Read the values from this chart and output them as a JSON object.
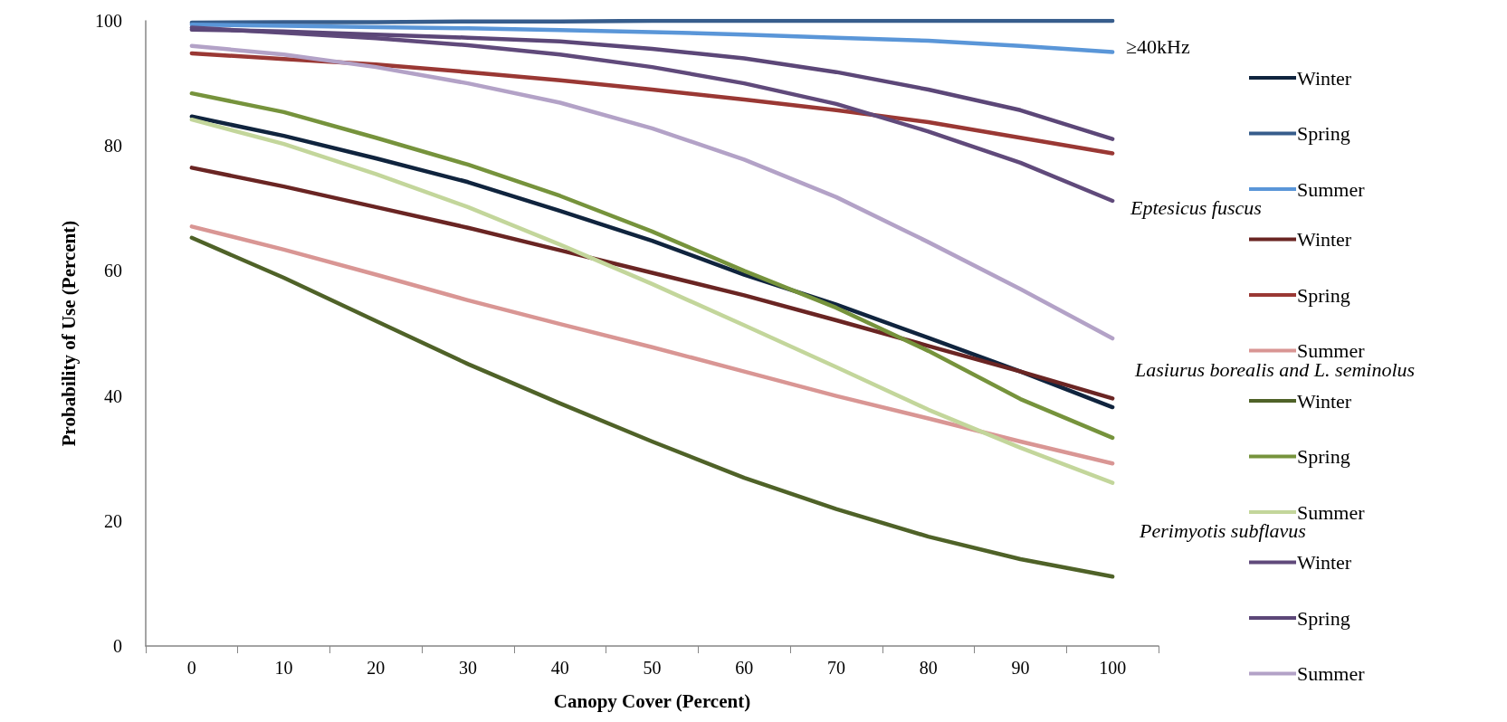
{
  "chart_data": {
    "type": "line",
    "xlabel": "Canopy Cover (Percent)",
    "ylabel": "Probability of Use (Percent)",
    "categories": [
      "0",
      "10",
      "20",
      "30",
      "40",
      "50",
      "60",
      "70",
      "80",
      "90",
      "100"
    ],
    "ylim": [
      0,
      100
    ],
    "yticks": [
      0,
      20,
      40,
      60,
      80,
      100
    ],
    "grid": false,
    "legend": "right",
    "annotations": [
      "≥40kHz",
      "Eptesicus fuscus",
      "Lasiurus borealis and L. seminolus",
      "Perimyotis subflavus"
    ],
    "series": [
      {
        "name": "Winter",
        "color": "#10243e",
        "values": [
          84.7,
          81.6,
          78.0,
          74.2,
          69.6,
          64.8,
          59.4,
          54.6,
          49.3,
          43.9,
          38.2
        ]
      },
      {
        "name": "Spring",
        "color": "#375d8c",
        "values": [
          99.7,
          99.8,
          99.8,
          99.9,
          99.9,
          100,
          100,
          100,
          100,
          100,
          100
        ]
      },
      {
        "name": "Summer",
        "color": "#5a96d8",
        "values": [
          99.4,
          99.2,
          99.0,
          98.8,
          98.5,
          98.2,
          97.8,
          97.3,
          96.8,
          96.0,
          95.0
        ]
      },
      {
        "name": "Winter",
        "color": "#6a2523",
        "values": [
          76.5,
          73.5,
          70.2,
          66.9,
          63.3,
          59.7,
          56.1,
          52.1,
          48.0,
          43.9,
          39.6
        ]
      },
      {
        "name": "Spring",
        "color": "#9a3834",
        "values": [
          94.8,
          93.9,
          93.0,
          91.8,
          90.5,
          89.0,
          87.4,
          85.7,
          83.8,
          81.3,
          78.8
        ]
      },
      {
        "name": "Summer",
        "color": "#d99694",
        "values": [
          67.1,
          63.4,
          59.4,
          55.3,
          51.5,
          47.8,
          43.9,
          40.0,
          36.4,
          32.7,
          29.2
        ]
      },
      {
        "name": "Winter",
        "color": "#4f6228",
        "values": [
          65.3,
          58.9,
          52.0,
          45.1,
          38.8,
          32.7,
          26.9,
          21.9,
          17.5,
          13.9,
          11.1
        ]
      },
      {
        "name": "Spring",
        "color": "#76933c",
        "values": [
          88.4,
          85.4,
          81.3,
          77.0,
          72.0,
          66.3,
          60.0,
          54.1,
          47.2,
          39.5,
          33.3
        ]
      },
      {
        "name": "Summer",
        "color": "#c3d69b",
        "values": [
          84.2,
          80.3,
          75.5,
          70.2,
          64.2,
          57.9,
          51.3,
          44.6,
          37.8,
          31.7,
          26.1
        ]
      },
      {
        "name": "Winter",
        "color": "#604a7b",
        "values": [
          98.9,
          98.1,
          97.2,
          96.1,
          94.6,
          92.6,
          90.0,
          86.7,
          82.3,
          77.3,
          71.2
        ]
      },
      {
        "name": "Spring",
        "color": "#5c4778",
        "values": [
          98.6,
          98.3,
          97.8,
          97.3,
          96.7,
          95.5,
          94.0,
          91.8,
          89.0,
          85.7,
          81.1
        ]
      },
      {
        "name": "Summer",
        "color": "#b3a2c7",
        "values": [
          96.0,
          94.6,
          92.6,
          90.0,
          86.9,
          82.8,
          77.8,
          71.8,
          64.6,
          57.1,
          49.2
        ]
      }
    ]
  }
}
